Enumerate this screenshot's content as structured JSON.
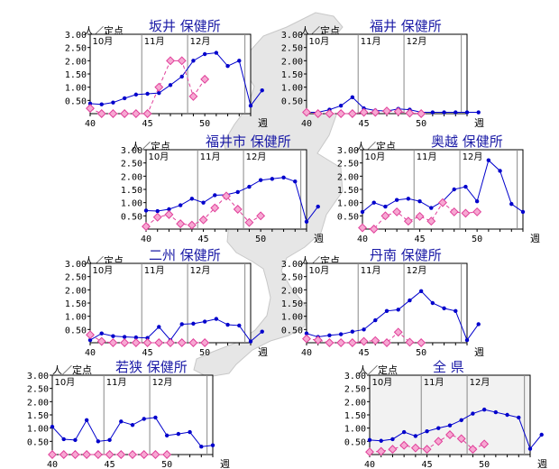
{
  "colors": {
    "current": "#0000cc",
    "previous": "#e0409a",
    "title": "#1a1aa6",
    "map": "#e6e6e6",
    "plot_bg": "#ffffff",
    "shade": "#f2f2f2"
  },
  "common": {
    "ylabel": "人／定点",
    "xunit": "週",
    "months": [
      "10月",
      "11月",
      "12月"
    ],
    "yticks": [
      "3.00",
      "2.50",
      "2.00",
      "1.50",
      "1.00",
      "0.50"
    ],
    "xticks": [
      "40",
      "45",
      "50"
    ]
  },
  "chart_data": [
    {
      "type": "line",
      "title": "坂井 保健所",
      "x_start": 40,
      "ylim": [
        0,
        3.0
      ],
      "xlim": [
        40,
        54
      ],
      "series": [
        {
          "values": [
            0.38,
            0.35,
            0.42,
            0.58,
            0.72,
            0.75,
            0.78,
            1.08,
            1.4,
            2.0,
            2.25,
            2.3,
            1.8,
            2.0,
            0.3,
            0.88
          ]
        },
        {
          "values": [
            0.2,
            0.0,
            0.0,
            0.0,
            0.0,
            0.0,
            1.0,
            2.0,
            2.0,
            0.65,
            1.3
          ]
        }
      ]
    },
    {
      "type": "line",
      "title": "福井 保健所",
      "x_start": 40,
      "ylim": [
        0,
        3.0
      ],
      "xlim": [
        40,
        54
      ],
      "series": [
        {
          "values": [
            0.05,
            0.05,
            0.15,
            0.3,
            0.62,
            0.2,
            0.12,
            0.1,
            0.18,
            0.15,
            0.05,
            0.05,
            0.05,
            0.05,
            0.05,
            0.05
          ]
        },
        {
          "values": [
            0.05,
            0.0,
            0.0,
            0.0,
            0.0,
            0.05,
            0.05,
            0.1,
            0.08,
            0.02,
            0.0
          ]
        }
      ]
    },
    {
      "type": "line",
      "title": "福井市 保健所",
      "x_start": 40,
      "ylim": [
        0,
        3.0
      ],
      "xlim": [
        40,
        54
      ],
      "series": [
        {
          "values": [
            0.7,
            0.68,
            0.75,
            0.9,
            1.15,
            1.0,
            1.28,
            1.3,
            1.4,
            1.6,
            1.85,
            1.9,
            1.95,
            1.8,
            0.28,
            0.85
          ]
        },
        {
          "values": [
            0.1,
            0.45,
            0.55,
            0.2,
            0.15,
            0.35,
            0.8,
            1.25,
            0.75,
            0.25,
            0.5
          ]
        }
      ]
    },
    {
      "type": "line",
      "title": "奥越 保健所",
      "x_start": 40,
      "ylim": [
        0,
        3.0
      ],
      "xlim": [
        40,
        54
      ],
      "series": [
        {
          "values": [
            0.65,
            1.0,
            0.85,
            1.1,
            1.15,
            1.05,
            0.8,
            1.05,
            1.5,
            1.6,
            1.05,
            2.6,
            2.2,
            0.95,
            0.65
          ]
        },
        {
          "values": [
            0.05,
            0.0,
            0.5,
            0.65,
            0.3,
            0.48,
            0.3,
            1.0,
            0.65,
            0.6,
            0.65
          ]
        }
      ]
    },
    {
      "type": "line",
      "title": "二州 保健所",
      "x_start": 40,
      "ylim": [
        0,
        3.0
      ],
      "xlim": [
        40,
        54
      ],
      "series": [
        {
          "values": [
            0.1,
            0.35,
            0.25,
            0.22,
            0.2,
            0.18,
            0.6,
            0.1,
            0.7,
            0.72,
            0.8,
            0.9,
            0.68,
            0.65,
            0.05,
            0.42
          ]
        },
        {
          "values": [
            0.3,
            0.05,
            0.0,
            0.0,
            0.0,
            0.0,
            0.0,
            0.0,
            0.0,
            0.0,
            0.0
          ]
        }
      ]
    },
    {
      "type": "line",
      "title": "丹南 保健所",
      "x_start": 40,
      "ylim": [
        0,
        3.0
      ],
      "xlim": [
        40,
        54
      ],
      "series": [
        {
          "values": [
            0.35,
            0.22,
            0.28,
            0.32,
            0.42,
            0.5,
            0.85,
            1.2,
            1.25,
            1.6,
            1.95,
            1.5,
            1.3,
            1.2,
            0.1,
            0.7
          ]
        },
        {
          "values": [
            0.15,
            0.1,
            0.0,
            0.0,
            0.0,
            0.05,
            0.08,
            0.0,
            0.4,
            0.02,
            0.0
          ]
        }
      ]
    },
    {
      "type": "line",
      "title": "若狭 保健所",
      "x_start": 40,
      "ylim": [
        0,
        3.0
      ],
      "xlim": [
        40,
        54
      ],
      "series": [
        {
          "values": [
            1.05,
            0.58,
            0.55,
            1.3,
            0.5,
            0.55,
            1.25,
            1.12,
            1.35,
            1.4,
            0.72,
            0.78,
            0.85,
            0.3,
            0.35
          ]
        },
        {
          "values": [
            0.0,
            0.0,
            0.0,
            0.0,
            0.0,
            0.0,
            0.0,
            0.0,
            0.0,
            0.0,
            0.0
          ]
        }
      ]
    },
    {
      "type": "line",
      "title": "全 県",
      "x_start": 40,
      "ylim": [
        0,
        3.0
      ],
      "xlim": [
        40,
        54
      ],
      "series": [
        {
          "values": [
            0.55,
            0.52,
            0.58,
            0.85,
            0.7,
            0.88,
            1.0,
            1.1,
            1.3,
            1.55,
            1.7,
            1.6,
            1.5,
            1.4,
            0.22,
            0.75
          ]
        },
        {
          "values": [
            0.1,
            0.12,
            0.2,
            0.35,
            0.25,
            0.2,
            0.5,
            0.75,
            0.6,
            0.2,
            0.4
          ]
        }
      ]
    }
  ]
}
